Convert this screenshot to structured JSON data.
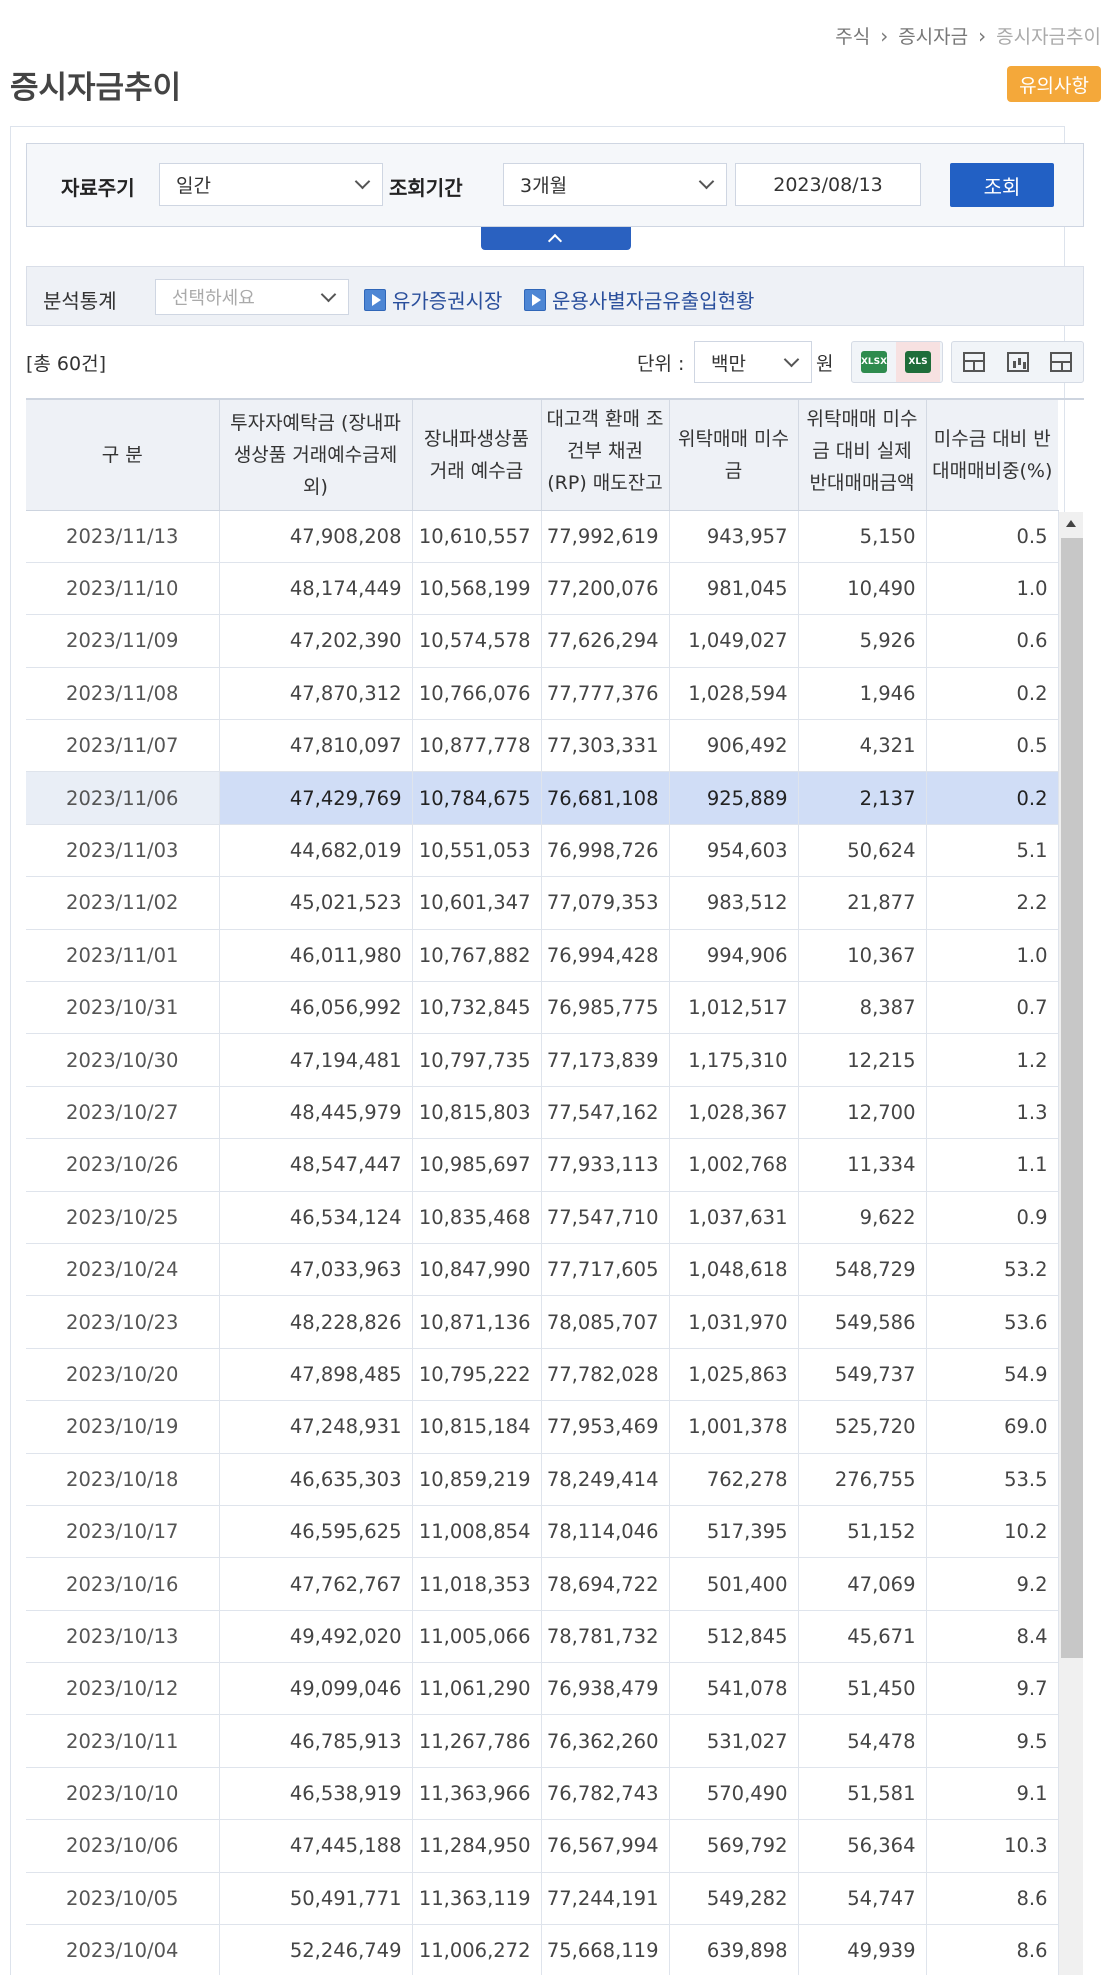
{
  "breadcrumb": [
    "주식",
    "증시자금",
    "증시자금추이"
  ],
  "page_title": "증시자금추이",
  "notice_button": "유의사항",
  "search": {
    "period_label": "자료주기",
    "period_value": "일간",
    "range_label": "조회기간",
    "range_value": "3개월",
    "date_value": "2023/08/13",
    "query_button": "조회"
  },
  "analysis": {
    "label": "분석통계",
    "select_placeholder": "선택하세요",
    "link1": "유가증권시장",
    "link2": "운용사별자금유출입현황"
  },
  "toolbar": {
    "total": "[총 60건]",
    "unit_label": "단위 :",
    "unit_value": "백만",
    "currency": "원",
    "xlsx": "XLSX",
    "xls": "XLS"
  },
  "table": {
    "headers": [
      "구 분",
      "투자자예탁금 (장내파생상품 거래예수금제외)",
      "장내파생상품 거래 예수금",
      "대고객 환매 조건부 채권 (RP) 매도잔고",
      "위탁매매 미수금",
      "위탁매매 미수금 대비 실제 반대매매금액",
      "미수금 대비 반대매매비중(%)"
    ],
    "rows": [
      [
        "2023/11/13",
        "47,908,208",
        "10,610,557",
        "77,992,619",
        "943,957",
        "5,150",
        "0.5"
      ],
      [
        "2023/11/10",
        "48,174,449",
        "10,568,199",
        "77,200,076",
        "981,045",
        "10,490",
        "1.0"
      ],
      [
        "2023/11/09",
        "47,202,390",
        "10,574,578",
        "77,626,294",
        "1,049,027",
        "5,926",
        "0.6"
      ],
      [
        "2023/11/08",
        "47,870,312",
        "10,766,076",
        "77,777,376",
        "1,028,594",
        "1,946",
        "0.2"
      ],
      [
        "2023/11/07",
        "47,810,097",
        "10,877,778",
        "77,303,331",
        "906,492",
        "4,321",
        "0.5"
      ],
      [
        "2023/11/06",
        "47,429,769",
        "10,784,675",
        "76,681,108",
        "925,889",
        "2,137",
        "0.2"
      ],
      [
        "2023/11/03",
        "44,682,019",
        "10,551,053",
        "76,998,726",
        "954,603",
        "50,624",
        "5.1"
      ],
      [
        "2023/11/02",
        "45,021,523",
        "10,601,347",
        "77,079,353",
        "983,512",
        "21,877",
        "2.2"
      ],
      [
        "2023/11/01",
        "46,011,980",
        "10,767,882",
        "76,994,428",
        "994,906",
        "10,367",
        "1.0"
      ],
      [
        "2023/10/31",
        "46,056,992",
        "10,732,845",
        "76,985,775",
        "1,012,517",
        "8,387",
        "0.7"
      ],
      [
        "2023/10/30",
        "47,194,481",
        "10,797,735",
        "77,173,839",
        "1,175,310",
        "12,215",
        "1.2"
      ],
      [
        "2023/10/27",
        "48,445,979",
        "10,815,803",
        "77,547,162",
        "1,028,367",
        "12,700",
        "1.3"
      ],
      [
        "2023/10/26",
        "48,547,447",
        "10,985,697",
        "77,933,113",
        "1,002,768",
        "11,334",
        "1.1"
      ],
      [
        "2023/10/25",
        "46,534,124",
        "10,835,468",
        "77,547,710",
        "1,037,631",
        "9,622",
        "0.9"
      ],
      [
        "2023/10/24",
        "47,033,963",
        "10,847,990",
        "77,717,605",
        "1,048,618",
        "548,729",
        "53.2"
      ],
      [
        "2023/10/23",
        "48,228,826",
        "10,871,136",
        "78,085,707",
        "1,031,970",
        "549,586",
        "53.6"
      ],
      [
        "2023/10/20",
        "47,898,485",
        "10,795,222",
        "77,782,028",
        "1,025,863",
        "549,737",
        "54.9"
      ],
      [
        "2023/10/19",
        "47,248,931",
        "10,815,184",
        "77,953,469",
        "1,001,378",
        "525,720",
        "69.0"
      ],
      [
        "2023/10/18",
        "46,635,303",
        "10,859,219",
        "78,249,414",
        "762,278",
        "276,755",
        "53.5"
      ],
      [
        "2023/10/17",
        "46,595,625",
        "11,008,854",
        "78,114,046",
        "517,395",
        "51,152",
        "10.2"
      ],
      [
        "2023/10/16",
        "47,762,767",
        "11,018,353",
        "78,694,722",
        "501,400",
        "47,069",
        "9.2"
      ],
      [
        "2023/10/13",
        "49,492,020",
        "11,005,066",
        "78,781,732",
        "512,845",
        "45,671",
        "8.4"
      ],
      [
        "2023/10/12",
        "49,099,046",
        "11,061,290",
        "76,938,479",
        "541,078",
        "51,450",
        "9.7"
      ],
      [
        "2023/10/11",
        "46,785,913",
        "11,267,786",
        "76,362,260",
        "531,027",
        "54,478",
        "9.5"
      ],
      [
        "2023/10/10",
        "46,538,919",
        "11,363,966",
        "76,782,743",
        "570,490",
        "51,581",
        "9.1"
      ],
      [
        "2023/10/06",
        "47,445,188",
        "11,284,950",
        "76,567,994",
        "569,792",
        "56,364",
        "10.3"
      ],
      [
        "2023/10/05",
        "50,491,771",
        "11,363,119",
        "77,244,191",
        "549,282",
        "54,747",
        "8.6"
      ],
      [
        "2023/10/04",
        "52,246,749",
        "11,006,272",
        "75,668,119",
        "639,898",
        "49,939",
        "8.6"
      ]
    ]
  }
}
